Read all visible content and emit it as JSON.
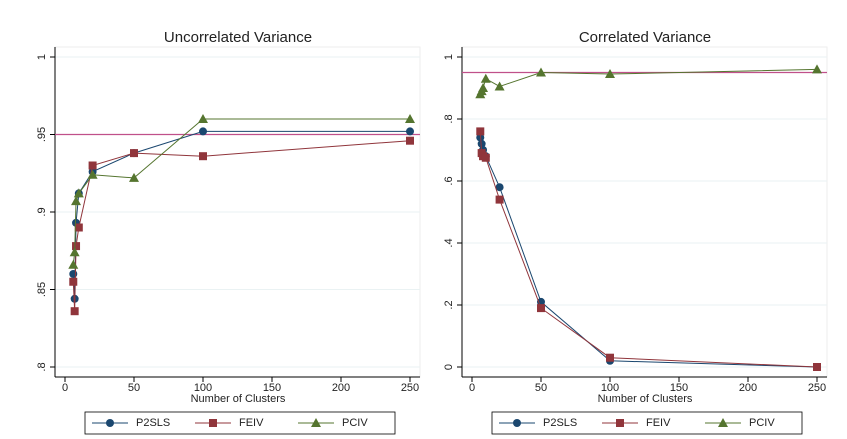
{
  "chart_data": [
    {
      "type": "line",
      "title": "Uncorrelated Variance",
      "x_label": "Number of Clusters",
      "x": [
        6,
        7,
        8,
        10,
        20,
        50,
        100,
        250
      ],
      "series": [
        {
          "name": "P2SLS",
          "color": "#1a476f",
          "marker": "circle",
          "values": [
            0.86,
            0.844,
            0.893,
            0.912,
            0.926,
            0.938,
            0.952,
            0.952
          ]
        },
        {
          "name": "FEIV",
          "color": "#90353b",
          "marker": "square",
          "values": [
            0.855,
            0.836,
            0.878,
            0.89,
            0.93,
            0.938,
            0.936,
            0.946
          ]
        },
        {
          "name": "PCIV",
          "color": "#55752f",
          "marker": "triangle",
          "values": [
            0.866,
            0.874,
            0.907,
            0.912,
            0.924,
            0.922,
            0.96,
            0.96
          ]
        }
      ],
      "hline": 0.95,
      "hline_color": "#c0508a",
      "xlim": [
        0,
        250
      ],
      "xticks": [
        0,
        50,
        100,
        150,
        200,
        250
      ],
      "ylim": [
        0.8,
        1
      ],
      "yticks": [
        {
          "value": 0.8,
          "label": ".8"
        },
        {
          "value": 0.85,
          "label": ".85"
        },
        {
          "value": 0.9,
          "label": ".9"
        },
        {
          "value": 0.95,
          "label": ".95"
        },
        1
      ],
      "grid": true
    },
    {
      "type": "line",
      "title": "Correlated Variance",
      "x_label": "Number of Clusters",
      "x": [
        6,
        7,
        8,
        10,
        20,
        50,
        100,
        250
      ],
      "series": [
        {
          "name": "P2SLS",
          "color": "#1a476f",
          "marker": "circle",
          "values": [
            0.74,
            0.72,
            0.7,
            0.68,
            0.58,
            0.21,
            0.02,
            0
          ]
        },
        {
          "name": "FEIV",
          "color": "#90353b",
          "marker": "square",
          "values": [
            0.76,
            0.69,
            0.68,
            0.675,
            0.54,
            0.19,
            0.03,
            0
          ]
        },
        {
          "name": "PCIV",
          "color": "#55752f",
          "marker": "triangle",
          "values": [
            0.88,
            0.89,
            0.9,
            0.93,
            0.905,
            0.95,
            0.945,
            0.96
          ]
        }
      ],
      "hline": 0.95,
      "hline_color": "#c0508a",
      "xlim": [
        0,
        250
      ],
      "xticks": [
        0,
        50,
        100,
        150,
        200,
        250
      ],
      "ylim": [
        0,
        1
      ],
      "yticks": [
        0,
        {
          "value": 0.2,
          "label": ".2"
        },
        {
          "value": 0.4,
          "label": ".4"
        },
        {
          "value": 0.6,
          "label": ".6"
        },
        {
          "value": 0.8,
          "label": ".8"
        },
        1
      ],
      "grid": true
    }
  ]
}
